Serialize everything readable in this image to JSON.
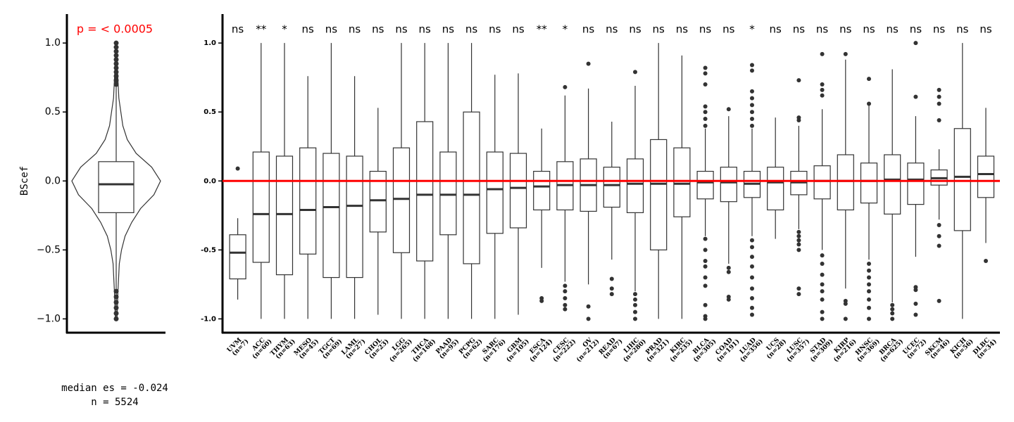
{
  "chart_data": [
    {
      "type": "violin",
      "title": "p = < 0.0005",
      "title_color": "#ff0000",
      "ylabel": "BScef",
      "ylim": [
        -1.1,
        1.21
      ],
      "yticks": [
        {
          "value": -1,
          "label": "−1.0"
        },
        {
          "value": -0.5,
          "label": "−0.5"
        },
        {
          "value": 0,
          "label": "0.0"
        },
        {
          "value": 0.5,
          "label": "0.5"
        },
        {
          "value": 1,
          "label": "1.0"
        }
      ],
      "density": {
        "y": [
          1.0,
          0.8,
          0.6,
          0.4,
          0.3,
          0.2,
          0.1,
          0.0,
          -0.1,
          -0.2,
          -0.3,
          -0.4,
          -0.5,
          -0.6,
          -0.8,
          -1.0
        ],
        "width": [
          0.02,
          0.03,
          0.06,
          0.15,
          0.25,
          0.45,
          0.8,
          1.0,
          0.85,
          0.55,
          0.35,
          0.2,
          0.12,
          0.07,
          0.04,
          0.02
        ]
      },
      "box": {
        "min": -1.0,
        "q1": -0.23,
        "median": -0.024,
        "q3": 0.14,
        "max": 1.0,
        "outliers": [
          1.0,
          0.97,
          0.94,
          0.91,
          0.88,
          0.85,
          0.82,
          0.79,
          0.76,
          0.73,
          0.7,
          -0.8,
          -0.84,
          -0.88,
          -0.92,
          -0.96,
          -1.0
        ]
      },
      "annotations": [
        "median es = -0.024",
        "n = 5524"
      ]
    },
    {
      "type": "box",
      "ylim": [
        -1.1,
        1.21
      ],
      "yticks": [
        {
          "value": -1,
          "label": "-1.0"
        },
        {
          "value": -0.5,
          "label": "-0.5"
        },
        {
          "value": 0,
          "label": "0.0"
        },
        {
          "value": 0.5,
          "label": "0.5"
        },
        {
          "value": 1,
          "label": "1.0"
        }
      ],
      "reference_line": 0,
      "reference_color": "#ff0000",
      "categories": [
        "UVM",
        "ACC",
        "THYM",
        "MESO",
        "TGCT",
        "LAML",
        "CHOL",
        "LGG",
        "THCA",
        "PAAD",
        "PCPG",
        "SARC",
        "GBM",
        "ESCA",
        "CESC",
        "OV",
        "READ",
        "LIHC",
        "PRAD",
        "KIRC",
        "BLCA",
        "COAD",
        "LUAD",
        "UCS",
        "LUSC",
        "STAD",
        "KIRP",
        "HNSC",
        "BRCA",
        "UCEC",
        "SKCM",
        "KICH",
        "DLBC"
      ],
      "counts": [
        "(n=7)",
        "(n=60)",
        "(n=63)",
        "(n=45)",
        "(n=69)",
        "(n=27)",
        "(n=23)",
        "(n=265)",
        "(n=168)",
        "(n=95)",
        "(n=62)",
        "(n=176)",
        "(n=105)",
        "(n=124)",
        "(n=222)",
        "(n=212)",
        "(n=67)",
        "(n=280)",
        "(n=321)",
        "(n=235)",
        "(n=305)",
        "(n=191)",
        "(n=356)",
        "(n=28)",
        "(n=357)",
        "(n=309)",
        "(n=216)",
        "(n=369)",
        "(n=625)",
        "(n=72)",
        "(n=46)",
        "(n=56)",
        "(n=34)"
      ],
      "significance": [
        "ns",
        "**",
        "*",
        "ns",
        "ns",
        "ns",
        "ns",
        "ns",
        "ns",
        "ns",
        "ns",
        "ns",
        "ns",
        "**",
        "*",
        "ns",
        "ns",
        "ns",
        "ns",
        "ns",
        "ns",
        "ns",
        "*",
        "ns",
        "ns",
        "ns",
        "ns",
        "ns",
        "ns",
        "ns",
        "ns",
        "ns",
        "ns"
      ],
      "boxes": [
        {
          "min": -0.86,
          "q1": -0.71,
          "median": -0.52,
          "q3": -0.39,
          "max": -0.27,
          "outliers": [
            0.09
          ]
        },
        {
          "min": -1.0,
          "q1": -0.59,
          "median": -0.24,
          "q3": 0.21,
          "max": 1.0,
          "outliers": []
        },
        {
          "min": -1.0,
          "q1": -0.68,
          "median": -0.24,
          "q3": 0.18,
          "max": 1.0,
          "outliers": []
        },
        {
          "min": -1.0,
          "q1": -0.53,
          "median": -0.21,
          "q3": 0.24,
          "max": 0.76,
          "outliers": []
        },
        {
          "min": -1.0,
          "q1": -0.7,
          "median": -0.19,
          "q3": 0.2,
          "max": 1.0,
          "outliers": []
        },
        {
          "min": -1.0,
          "q1": -0.7,
          "median": -0.18,
          "q3": 0.18,
          "max": 0.76,
          "outliers": []
        },
        {
          "min": -0.97,
          "q1": -0.37,
          "median": -0.14,
          "q3": 0.07,
          "max": 0.53,
          "outliers": []
        },
        {
          "min": -1.0,
          "q1": -0.52,
          "median": -0.13,
          "q3": 0.24,
          "max": 1.0,
          "outliers": []
        },
        {
          "min": -1.0,
          "q1": -0.58,
          "median": -0.1,
          "q3": 0.43,
          "max": 1.0,
          "outliers": []
        },
        {
          "min": -1.0,
          "q1": -0.39,
          "median": -0.1,
          "q3": 0.21,
          "max": 1.0,
          "outliers": []
        },
        {
          "min": -1.0,
          "q1": -0.6,
          "median": -0.1,
          "q3": 0.5,
          "max": 1.0,
          "outliers": []
        },
        {
          "min": -1.0,
          "q1": -0.38,
          "median": -0.06,
          "q3": 0.21,
          "max": 0.77,
          "outliers": []
        },
        {
          "min": -0.97,
          "q1": -0.34,
          "median": -0.05,
          "q3": 0.2,
          "max": 0.78,
          "outliers": []
        },
        {
          "min": -0.63,
          "q1": -0.21,
          "median": -0.04,
          "q3": 0.07,
          "max": 0.38,
          "outliers": [
            -0.85,
            -0.87
          ]
        },
        {
          "min": -0.73,
          "q1": -0.21,
          "median": -0.03,
          "q3": 0.14,
          "max": 0.62,
          "outliers": [
            0.68,
            -0.76,
            -0.8,
            -0.85,
            -0.9,
            -0.93
          ]
        },
        {
          "min": -0.75,
          "q1": -0.22,
          "median": -0.03,
          "q3": 0.16,
          "max": 0.67,
          "outliers": [
            0.85,
            -0.91,
            -1.0
          ]
        },
        {
          "min": -0.57,
          "q1": -0.19,
          "median": -0.03,
          "q3": 0.1,
          "max": 0.43,
          "outliers": [
            -0.71,
            -0.78,
            -0.82
          ]
        },
        {
          "min": -0.8,
          "q1": -0.23,
          "median": -0.02,
          "q3": 0.16,
          "max": 0.69,
          "outliers": [
            0.79,
            -0.82,
            -0.86,
            -0.9,
            -0.95,
            -1.0
          ]
        },
        {
          "min": -1.0,
          "q1": -0.5,
          "median": -0.02,
          "q3": 0.3,
          "max": 1.0,
          "outliers": []
        },
        {
          "min": -1.0,
          "q1": -0.26,
          "median": -0.02,
          "q3": 0.24,
          "max": 0.91,
          "outliers": []
        },
        {
          "min": -0.4,
          "q1": -0.13,
          "median": -0.01,
          "q3": 0.07,
          "max": 0.38,
          "outliers": [
            0.82,
            0.78,
            0.7,
            0.54,
            0.5,
            0.45,
            0.4,
            -0.42,
            -0.5,
            -0.58,
            -0.62,
            -0.7,
            -0.76,
            -0.9,
            -0.98,
            -1.0
          ]
        },
        {
          "min": -0.6,
          "q1": -0.15,
          "median": -0.01,
          "q3": 0.1,
          "max": 0.47,
          "outliers": [
            0.52,
            -0.63,
            -0.66,
            -0.84,
            -0.86
          ]
        },
        {
          "min": -0.4,
          "q1": -0.12,
          "median": -0.02,
          "q3": 0.07,
          "max": 0.38,
          "outliers": [
            0.84,
            0.8,
            0.65,
            0.6,
            0.55,
            0.5,
            0.45,
            0.4,
            -0.43,
            -0.48,
            -0.55,
            -0.62,
            -0.7,
            -0.78,
            -0.85,
            -0.92,
            -0.97
          ]
        },
        {
          "min": -0.42,
          "q1": -0.21,
          "median": -0.01,
          "q3": 0.1,
          "max": 0.46,
          "outliers": []
        },
        {
          "min": -0.35,
          "q1": -0.1,
          "median": -0.01,
          "q3": 0.07,
          "max": 0.4,
          "outliers": [
            0.73,
            0.46,
            0.44,
            -0.37,
            -0.4,
            -0.43,
            -0.46,
            -0.5,
            -0.78,
            -0.82
          ]
        },
        {
          "min": -0.5,
          "q1": -0.13,
          "median": 0.0,
          "q3": 0.11,
          "max": 0.52,
          "outliers": [
            0.92,
            0.7,
            0.66,
            0.62,
            -0.54,
            -0.6,
            -0.68,
            -0.75,
            -0.8,
            -0.86,
            -0.95,
            -1.0
          ]
        },
        {
          "min": -0.78,
          "q1": -0.21,
          "median": 0.0,
          "q3": 0.19,
          "max": 0.88,
          "outliers": [
            0.92,
            -0.87,
            -0.89,
            -1.0
          ]
        },
        {
          "min": -0.57,
          "q1": -0.16,
          "median": 0.0,
          "q3": 0.13,
          "max": 0.55,
          "outliers": [
            0.74,
            0.56,
            -0.6,
            -0.65,
            -0.7,
            -0.75,
            -0.8,
            -0.86,
            -0.92,
            -1.0
          ]
        },
        {
          "min": -0.88,
          "q1": -0.24,
          "median": 0.01,
          "q3": 0.19,
          "max": 0.81,
          "outliers": [
            -0.9,
            -0.93,
            -0.96,
            -1.0
          ]
        },
        {
          "min": -0.55,
          "q1": -0.17,
          "median": 0.01,
          "q3": 0.13,
          "max": 0.47,
          "outliers": [
            1.0,
            0.61,
            -0.77,
            -0.79,
            -0.89,
            -0.97
          ]
        },
        {
          "min": -0.28,
          "q1": -0.03,
          "median": 0.02,
          "q3": 0.08,
          "max": 0.23,
          "outliers": [
            0.66,
            0.61,
            0.56,
            0.44,
            -0.32,
            -0.4,
            -0.47,
            -0.87
          ]
        },
        {
          "min": -1.0,
          "q1": -0.36,
          "median": 0.03,
          "q3": 0.38,
          "max": 1.0,
          "outliers": []
        },
        {
          "min": -0.45,
          "q1": -0.12,
          "median": 0.05,
          "q3": 0.18,
          "max": 0.53,
          "outliers": [
            -0.58
          ]
        }
      ]
    }
  ]
}
